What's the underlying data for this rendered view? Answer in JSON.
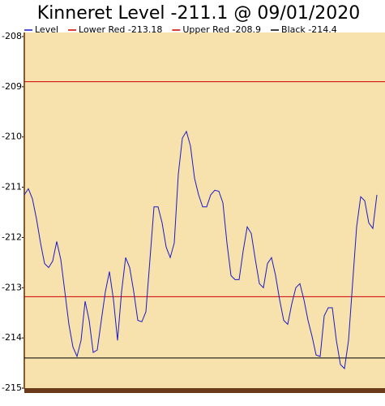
{
  "chart_data": {
    "type": "line",
    "title": "Kinneret Level -211.1 @ 09/01/2020",
    "categories": [
      null,
      null,
      null,
      null,
      null,
      null,
      null,
      null,
      null,
      null,
      null,
      null,
      null,
      null,
      null,
      null,
      null,
      null,
      null,
      null,
      null,
      null,
      null,
      null,
      null,
      null,
      null,
      null,
      null,
      null,
      null,
      null,
      null,
      null,
      null,
      null,
      null,
      null,
      null,
      null,
      null,
      null,
      null,
      null,
      null,
      null,
      null,
      null,
      null,
      null,
      null,
      null,
      null,
      null,
      null,
      null,
      null,
      null,
      null,
      null,
      null,
      null,
      null,
      null,
      null,
      null,
      null,
      null,
      null,
      null,
      null,
      null,
      null,
      null,
      null,
      null,
      null,
      null,
      null,
      null,
      null,
      null,
      null,
      null,
      null,
      null,
      null,
      null
    ],
    "series": [
      {
        "name": "Level",
        "color": "#1a1ac8",
        "values": [
          -211.15,
          -211.03,
          -211.23,
          -211.63,
          -212.11,
          -212.52,
          -212.6,
          -212.47,
          -212.08,
          -212.44,
          -213.08,
          -213.73,
          -214.18,
          -214.37,
          -214.05,
          -213.27,
          -213.65,
          -214.29,
          -214.24,
          -213.65,
          -213.08,
          -212.68,
          -213.24,
          -214.05,
          -213.08,
          -212.4,
          -212.6,
          -213.08,
          -213.65,
          -213.68,
          -213.48,
          -212.44,
          -211.39,
          -211.39,
          -211.71,
          -212.19,
          -212.4,
          -212.11,
          -210.74,
          -210.02,
          -209.89,
          -210.18,
          -210.82,
          -211.15,
          -211.39,
          -211.39,
          -211.15,
          -211.06,
          -211.08,
          -211.31,
          -212.11,
          -212.76,
          -212.84,
          -212.84,
          -212.27,
          -211.79,
          -211.92,
          -212.44,
          -212.92,
          -213,
          -212.52,
          -212.4,
          -212.76,
          -213.24,
          -213.65,
          -213.73,
          -213.32,
          -213,
          -212.92,
          -213.24,
          -213.65,
          -213.97,
          -214.34,
          -214.37,
          -213.56,
          -213.4,
          -213.4,
          -214.05,
          -214.53,
          -214.61,
          -214.05,
          -212.92,
          -211.79,
          -211.19,
          -211.27,
          -211.71,
          -211.82,
          -211.15
        ]
      }
    ],
    "reference_lines": [
      {
        "name": "Lower Red -213.18",
        "value": -213.18,
        "color": "#cc0000"
      },
      {
        "name": "Upper Red -208.9",
        "value": -208.9,
        "color": "#cc0000"
      },
      {
        "name": "Black -214.4",
        "value": -214.4,
        "color": "#000000"
      }
    ],
    "ylim": [
      -215,
      -208
    ],
    "yticks": [
      -215,
      -214,
      -213,
      -212,
      -211,
      -210,
      -209,
      -208
    ],
    "background": "#f7e1ad"
  }
}
